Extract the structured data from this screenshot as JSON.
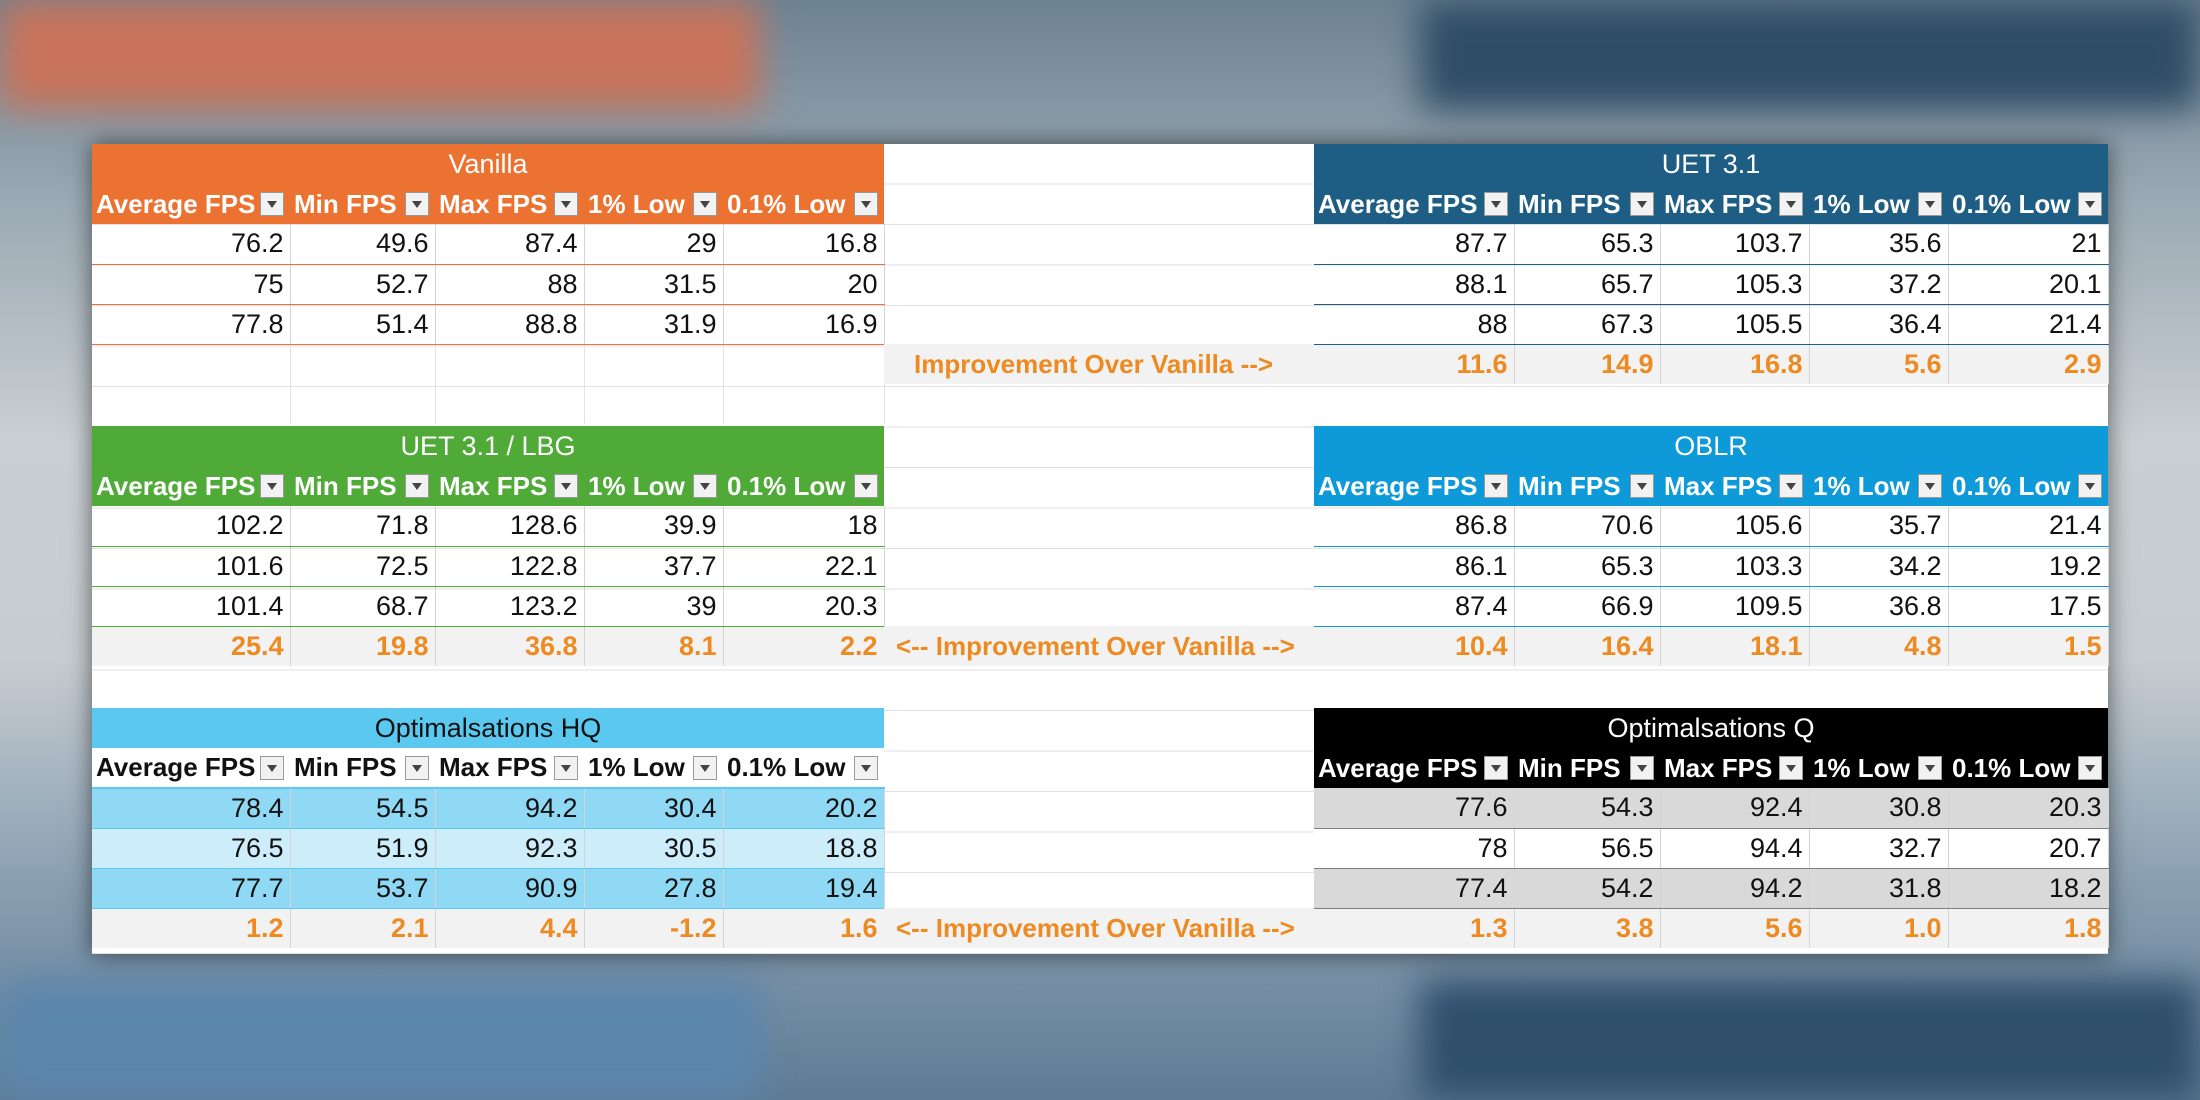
{
  "columns": [
    "Average FPS",
    "Min FPS",
    "Max FPS",
    "1% Low",
    "0.1% Low"
  ],
  "improvement_right_label": "Improvement Over Vanilla -->",
  "improvement_both_label": "<-- Improvement Over Vanilla -->",
  "tables": {
    "vanilla": {
      "title": "Vanilla",
      "rows": [
        [
          "76.2",
          "49.6",
          "87.4",
          "29",
          "16.8"
        ],
        [
          "75",
          "52.7",
          "88",
          "31.5",
          "20"
        ],
        [
          "77.8",
          "51.4",
          "88.8",
          "31.9",
          "16.9"
        ]
      ]
    },
    "uet31": {
      "title": "UET 3.1",
      "rows": [
        [
          "87.7",
          "65.3",
          "103.7",
          "35.6",
          "21"
        ],
        [
          "88.1",
          "65.7",
          "105.3",
          "37.2",
          "20.1"
        ],
        [
          "88",
          "67.3",
          "105.5",
          "36.4",
          "21.4"
        ]
      ],
      "improvement": [
        "11.6",
        "14.9",
        "16.8",
        "5.6",
        "2.9"
      ]
    },
    "uet_lbg": {
      "title": "UET 3.1 / LBG",
      "rows": [
        [
          "102.2",
          "71.8",
          "128.6",
          "39.9",
          "18"
        ],
        [
          "101.6",
          "72.5",
          "122.8",
          "37.7",
          "22.1"
        ],
        [
          "101.4",
          "68.7",
          "123.2",
          "39",
          "20.3"
        ]
      ],
      "improvement": [
        "25.4",
        "19.8",
        "36.8",
        "8.1",
        "2.2"
      ]
    },
    "oblr": {
      "title": "OBLR",
      "rows": [
        [
          "86.8",
          "70.6",
          "105.6",
          "35.7",
          "21.4"
        ],
        [
          "86.1",
          "65.3",
          "103.3",
          "34.2",
          "19.2"
        ],
        [
          "87.4",
          "66.9",
          "109.5",
          "36.8",
          "17.5"
        ]
      ],
      "improvement": [
        "10.4",
        "16.4",
        "18.1",
        "4.8",
        "1.5"
      ]
    },
    "opt_hq": {
      "title": "Optimalsations HQ",
      "rows": [
        [
          "78.4",
          "54.5",
          "94.2",
          "30.4",
          "20.2"
        ],
        [
          "76.5",
          "51.9",
          "92.3",
          "30.5",
          "18.8"
        ],
        [
          "77.7",
          "53.7",
          "90.9",
          "27.8",
          "19.4"
        ]
      ],
      "improvement": [
        "1.2",
        "2.1",
        "4.4",
        "-1.2",
        "1.6"
      ]
    },
    "opt_q": {
      "title": "Optimalsations Q",
      "rows": [
        [
          "77.6",
          "54.3",
          "92.4",
          "30.8",
          "20.3"
        ],
        [
          "78",
          "56.5",
          "94.4",
          "32.7",
          "20.7"
        ],
        [
          "77.4",
          "54.2",
          "94.2",
          "31.8",
          "18.2"
        ]
      ],
      "improvement": [
        "1.3",
        "3.8",
        "5.6",
        "1.0",
        "1.8"
      ]
    }
  },
  "colors": {
    "vanilla": "#ec7232",
    "uet31": "#1e5d84",
    "uet_lbg": "#4faa38",
    "oblr": "#0e9ad8",
    "opt_hq": "#5bc9ef",
    "opt_q": "#000000",
    "improvement_text": "#ee8a22"
  }
}
